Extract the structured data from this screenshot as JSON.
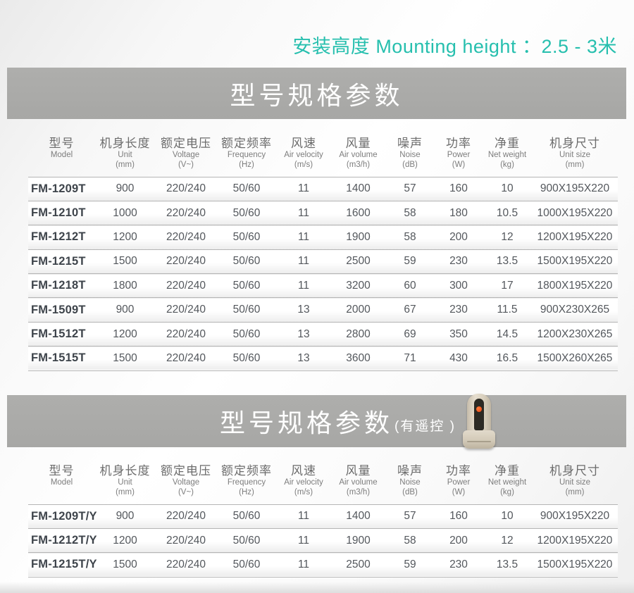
{
  "header": {
    "mounting_height_label": "安装高度 Mounting height ：2.5 - 3米",
    "accent_color": "#26bfae"
  },
  "section1": {
    "banner_title": "型号规格参数"
  },
  "section2": {
    "banner_title": "型号规格参数",
    "banner_subtitle": "(有遥控 )"
  },
  "columns": [
    {
      "cn": "型号",
      "en": "Model",
      "unit": ""
    },
    {
      "cn": "机身长度",
      "en": "Unit",
      "unit": "(mm)"
    },
    {
      "cn": "额定电压",
      "en": "Voltage",
      "unit": "(V~)"
    },
    {
      "cn": "额定频率",
      "en": "Frequency",
      "unit": "(Hz)"
    },
    {
      "cn": "风速",
      "en": "Air velocity",
      "unit": "(m/s)"
    },
    {
      "cn": "风量",
      "en": "Air volume",
      "unit": "(m3/h)"
    },
    {
      "cn": "噪声",
      "en": "Noise",
      "unit": "(dB)"
    },
    {
      "cn": "功率",
      "en": "Power",
      "unit": "(W)"
    },
    {
      "cn": "净重",
      "en": "Net weight",
      "unit": "(kg)"
    },
    {
      "cn": "机身尺寸",
      "en": "Unit size",
      "unit": "(mm)"
    }
  ],
  "table1": {
    "rows": [
      [
        "FM-1209T",
        "900",
        "220/240",
        "50/60",
        "11",
        "1400",
        "57",
        "160",
        "10",
        "900X195X220"
      ],
      [
        "FM-1210T",
        "1000",
        "220/240",
        "50/60",
        "11",
        "1600",
        "58",
        "180",
        "10.5",
        "1000X195X220"
      ],
      [
        "FM-1212T",
        "1200",
        "220/240",
        "50/60",
        "11",
        "1900",
        "58",
        "200",
        "12",
        "1200X195X220"
      ],
      [
        "FM-1215T",
        "1500",
        "220/240",
        "50/60",
        "11",
        "2500",
        "59",
        "230",
        "13.5",
        "1500X195X220"
      ],
      [
        "FM-1218T",
        "1800",
        "220/240",
        "50/60",
        "11",
        "3200",
        "60",
        "300",
        "17",
        "1800X195X220"
      ],
      [
        "FM-1509T",
        "900",
        "220/240",
        "50/60",
        "13",
        "2000",
        "67",
        "230",
        "11.5",
        "900X230X265"
      ],
      [
        "FM-1512T",
        "1200",
        "220/240",
        "50/60",
        "13",
        "2800",
        "69",
        "350",
        "14.5",
        "1200X230X265"
      ],
      [
        "FM-1515T",
        "1500",
        "220/240",
        "50/60",
        "13",
        "3600",
        "71",
        "430",
        "16.5",
        "1500X260X265"
      ]
    ]
  },
  "table2": {
    "rows": [
      [
        "FM-1209T/Y",
        "900",
        "220/240",
        "50/60",
        "11",
        "1400",
        "57",
        "160",
        "10",
        "900X195X220"
      ],
      [
        "FM-1212T/Y",
        "1200",
        "220/240",
        "50/60",
        "11",
        "1900",
        "58",
        "200",
        "12",
        "1200X195X220"
      ],
      [
        "FM-1215T/Y",
        "1500",
        "220/240",
        "50/60",
        "11",
        "2500",
        "59",
        "230",
        "13.5",
        "1500X195X220"
      ]
    ]
  }
}
